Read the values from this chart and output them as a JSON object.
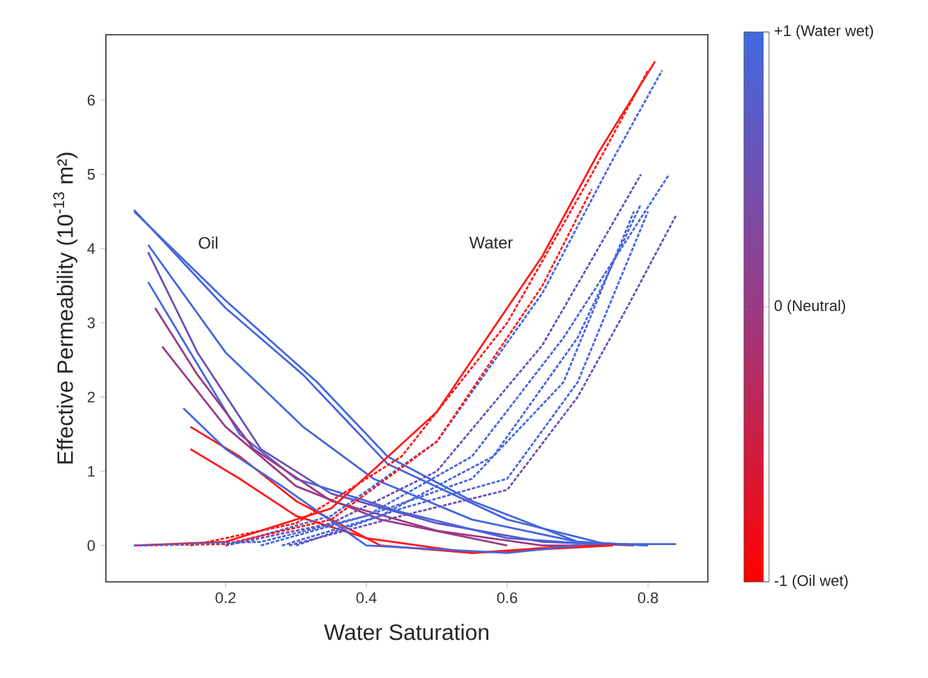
{
  "chart_data": {
    "type": "line",
    "xlabel": "Water Saturation",
    "ylabel": "Effective Permeability (10$^{-13}$ m²)",
    "xlim": [
      0.03,
      0.885
    ],
    "ylim": [
      -0.49,
      6.88
    ],
    "xticks": [
      0.2,
      0.4,
      0.6,
      0.8
    ],
    "yticks": [
      0,
      1,
      2,
      3,
      4,
      5,
      6
    ],
    "grid": false,
    "marker": "none",
    "clim": [
      -1,
      1
    ],
    "cticks": [
      {
        "value": 1,
        "label": "+1 (Water wet)"
      },
      {
        "value": 0,
        "label": "0 (Neutral)"
      },
      {
        "value": -1,
        "label": "-1 (Oil wet)"
      }
    ],
    "annotations": [
      "Oil",
      "Water"
    ],
    "series": [
      {
        "color": "#4466dd",
        "line_style": "solid",
        "x": [
          0.07,
          0.2,
          0.31,
          0.43,
          0.6,
          0.74,
          0.84
        ],
        "values": [
          4.52,
          3.2,
          2.3,
          1.1,
          0.35,
          0.02,
          0.02
        ]
      },
      {
        "color": "#4466dd",
        "line_style": "solid",
        "x": [
          0.07,
          0.2,
          0.33,
          0.43,
          0.55,
          0.7,
          0.8
        ],
        "values": [
          4.5,
          3.3,
          2.2,
          1.2,
          0.6,
          0.05,
          0.0
        ]
      },
      {
        "color": "#4466dd",
        "line_style": "solid",
        "x": [
          0.09,
          0.2,
          0.31,
          0.41,
          0.55,
          0.7,
          0.8
        ],
        "values": [
          4.05,
          2.6,
          1.6,
          0.9,
          0.35,
          0.05,
          0.0
        ]
      },
      {
        "color": "#6a4fb8",
        "line_style": "solid",
        "x": [
          0.09,
          0.16,
          0.25,
          0.35,
          0.5,
          0.65,
          0.78
        ],
        "values": [
          3.95,
          2.6,
          1.3,
          0.7,
          0.3,
          0.05,
          0.0
        ]
      },
      {
        "color": "#4466dd",
        "line_style": "solid",
        "x": [
          0.09,
          0.15,
          0.22,
          0.3,
          0.45,
          0.6,
          0.75
        ],
        "values": [
          3.55,
          2.6,
          1.5,
          0.9,
          0.45,
          0.1,
          0.0
        ]
      },
      {
        "color": "#9a3a84",
        "line_style": "solid",
        "x": [
          0.1,
          0.16,
          0.24,
          0.35,
          0.5,
          0.65,
          0.75
        ],
        "values": [
          3.2,
          2.3,
          1.3,
          0.6,
          0.2,
          0.0,
          0.0
        ]
      },
      {
        "color": "#9a3a84",
        "line_style": "solid",
        "x": [
          0.11,
          0.2,
          0.3,
          0.42,
          0.6
        ],
        "values": [
          2.68,
          1.6,
          0.8,
          0.35,
          0.0
        ]
      },
      {
        "color": "#ff1a1a",
        "line_style": "solid",
        "x": [
          0.15,
          0.22,
          0.3,
          0.42,
          0.55,
          0.65,
          0.75
        ],
        "values": [
          1.6,
          1.2,
          0.6,
          0.0,
          -0.1,
          -0.05,
          0.0
        ]
      },
      {
        "color": "#ff1a1a",
        "line_style": "solid",
        "x": [
          0.15,
          0.22,
          0.3,
          0.4,
          0.55,
          0.7
        ],
        "values": [
          1.3,
          0.9,
          0.4,
          0.1,
          -0.1,
          0.0
        ]
      },
      {
        "color": "#4466dd",
        "line_style": "solid",
        "x": [
          0.14,
          0.2,
          0.28,
          0.4,
          0.6,
          0.7
        ],
        "values": [
          1.85,
          1.3,
          0.8,
          0.0,
          -0.1,
          0.0
        ]
      },
      {
        "color": "#ff1a1a",
        "line_style": "solid",
        "x": [
          0.07,
          0.2,
          0.35,
          0.5,
          0.65,
          0.73,
          0.81
        ],
        "values": [
          0.0,
          0.05,
          0.5,
          1.8,
          3.9,
          5.3,
          6.52
        ]
      },
      {
        "color": "#ff1a1a",
        "line_style": "dashed",
        "x": [
          0.15,
          0.3,
          0.45,
          0.6,
          0.72,
          0.8
        ],
        "values": [
          0.0,
          0.3,
          1.2,
          3.0,
          5.0,
          6.4
        ]
      },
      {
        "color": "#4466dd",
        "line_style": "dashed",
        "x": [
          0.2,
          0.35,
          0.5,
          0.65,
          0.75,
          0.82
        ],
        "values": [
          0.0,
          0.4,
          1.4,
          3.4,
          5.2,
          6.4
        ]
      },
      {
        "color": "#6a4fb8",
        "line_style": "dashed",
        "x": [
          0.2,
          0.35,
          0.5,
          0.65,
          0.79
        ],
        "values": [
          0.0,
          0.3,
          1.0,
          2.7,
          5.0
        ]
      },
      {
        "color": "#4466dd",
        "line_style": "dashed",
        "x": [
          0.25,
          0.4,
          0.55,
          0.68,
          0.83
        ],
        "values": [
          0.0,
          0.4,
          1.2,
          2.8,
          5.0
        ]
      },
      {
        "color": "#4466dd",
        "line_style": "dashed",
        "x": [
          0.28,
          0.42,
          0.58,
          0.7,
          0.79
        ],
        "values": [
          0.0,
          0.4,
          1.2,
          2.8,
          4.6
        ]
      },
      {
        "color": "#4466dd",
        "line_style": "dashed",
        "x": [
          0.3,
          0.45,
          0.6,
          0.7,
          0.8
        ],
        "values": [
          0.0,
          0.5,
          0.9,
          2.2,
          4.5
        ]
      },
      {
        "color": "#6a4fb8",
        "line_style": "dashed",
        "x": [
          0.29,
          0.45,
          0.6,
          0.7,
          0.77,
          0.84
        ],
        "values": [
          0.0,
          0.4,
          0.75,
          2.0,
          3.2,
          4.45
        ]
      },
      {
        "color": "#ff1a1a",
        "line_style": "dashed",
        "x": [
          0.07,
          0.2,
          0.35,
          0.5,
          0.65,
          0.72
        ],
        "values": [
          0.0,
          0.02,
          0.35,
          1.4,
          3.5,
          4.8
        ]
      },
      {
        "color": "#4466dd",
        "line_style": "dashed",
        "x": [
          0.07,
          0.25,
          0.4,
          0.55,
          0.68,
          0.78
        ],
        "values": [
          0.0,
          0.05,
          0.4,
          0.9,
          2.2,
          4.5
        ]
      }
    ]
  }
}
